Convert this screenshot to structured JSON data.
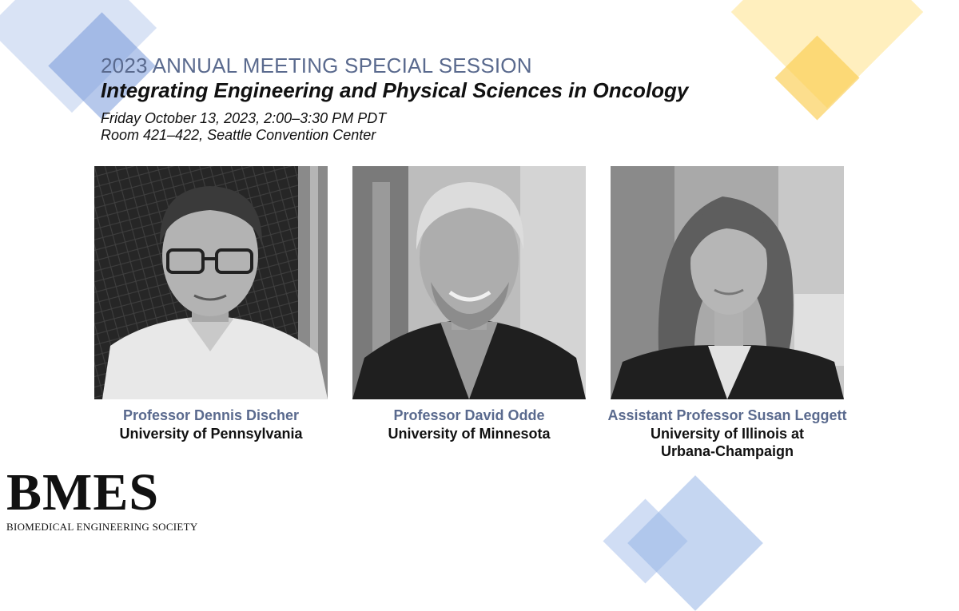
{
  "event": {
    "title": "2023 ANNUAL MEETING SPECIAL SESSION",
    "subtitle": "Integrating Engineering and Physical Sciences in Oncology",
    "datetime": "Friday October 13, 2023, 2:00–3:30 PM PDT",
    "location": "Room 421–422, Seattle Convention Center"
  },
  "speakers": [
    {
      "name": "Professor Dennis Discher",
      "affiliation": "University of Pennsylvania"
    },
    {
      "name": "Professor David Odde",
      "affiliation": "University of Minnesota"
    },
    {
      "name": "Assistant Professor Susan Leggett",
      "affiliation": "University of Illinois at\nUrbana-Champaign"
    }
  ],
  "logo": {
    "mark": "BMES",
    "name": "BIOMEDICAL ENGINEERING SOCIETY"
  },
  "colors": {
    "accent_blue": "#5a6a8e",
    "deco_blue": "#a0b9e6",
    "deco_yellow": "#ffdc6e",
    "text": "#111111"
  }
}
